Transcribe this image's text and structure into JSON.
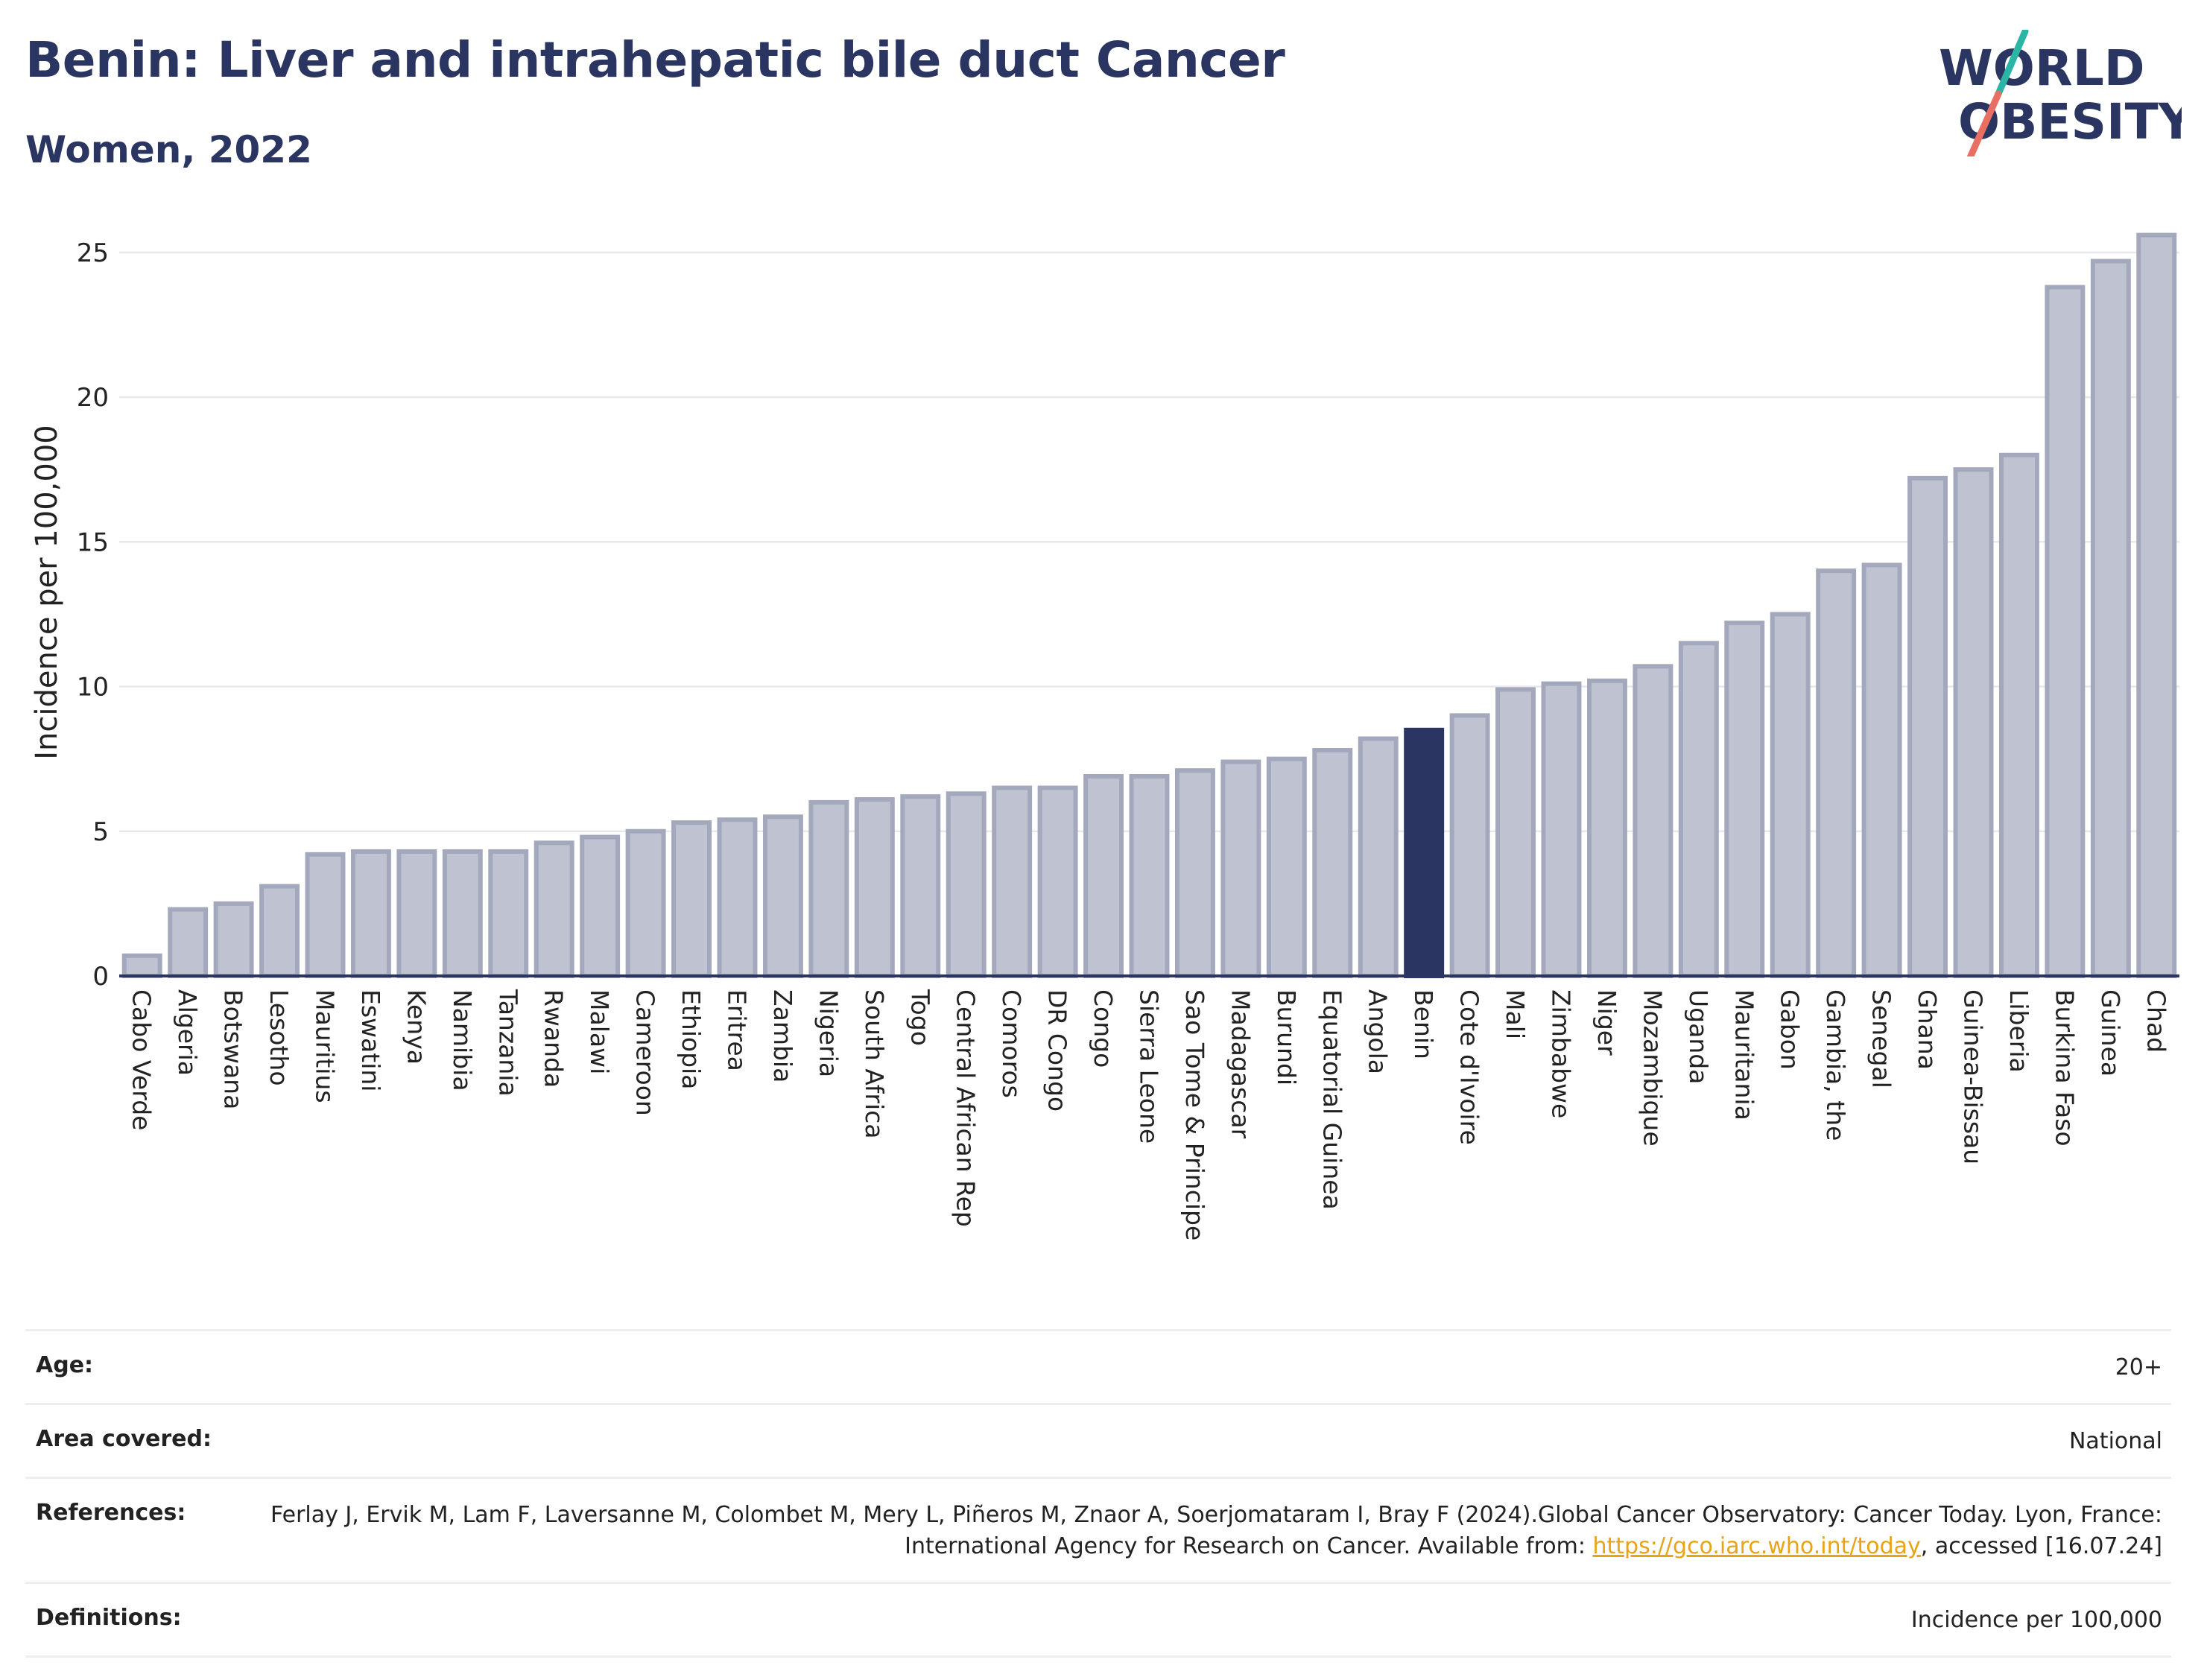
{
  "header": {
    "title": "Benin: Liver and intrahepatic bile duct Cancer",
    "subtitle": "Women, 2022"
  },
  "logo": {
    "text": "WORLD OBESITY",
    "colors": {
      "text": "#2b3561",
      "slash_top": "#2bb5a5",
      "slash_bottom": "#e86f61"
    }
  },
  "chart_data": {
    "type": "bar",
    "ylabel": "Incidence per 100,000",
    "ylim": [
      0,
      26
    ],
    "yticks": [
      0,
      5,
      10,
      15,
      20,
      25
    ],
    "grid": true,
    "highlight": "Benin",
    "colors": {
      "bar": "#bfc3d1",
      "bar_edge": "#a3a8bd",
      "highlight": "#2b3561"
    },
    "categories": [
      "Cabo Verde",
      "Algeria",
      "Botswana",
      "Lesotho",
      "Mauritius",
      "Eswatini",
      "Kenya",
      "Namibia",
      "Tanzania",
      "Rwanda",
      "Malawi",
      "Cameroon",
      "Ethiopia",
      "Eritrea",
      "Zambia",
      "Nigeria",
      "South Africa",
      "Togo",
      "Central African Rep",
      "Comoros",
      "DR Congo",
      "Congo",
      "Sierra Leone",
      "Sao Tome & Principe",
      "Madagascar",
      "Burundi",
      "Equatorial Guinea",
      "Angola",
      "Benin",
      "Cote d'Ivoire",
      "Mali",
      "Zimbabwe",
      "Niger",
      "Mozambique",
      "Uganda",
      "Mauritania",
      "Gabon",
      "Gambia, the",
      "Senegal",
      "Ghana",
      "Guinea-Bissau",
      "Liberia",
      "Burkina Faso",
      "Guinea",
      "Chad"
    ],
    "values": [
      0.7,
      2.3,
      2.5,
      3.1,
      4.2,
      4.3,
      4.3,
      4.3,
      4.3,
      4.6,
      4.8,
      5.0,
      5.3,
      5.4,
      5.5,
      6.0,
      6.1,
      6.2,
      6.3,
      6.5,
      6.5,
      6.9,
      6.9,
      7.1,
      7.4,
      7.5,
      7.8,
      8.2,
      8.5,
      9.0,
      9.9,
      10.1,
      10.2,
      10.7,
      11.5,
      12.2,
      12.5,
      14.0,
      14.2,
      17.2,
      17.5,
      18.0,
      23.8,
      24.7,
      25.6
    ]
  },
  "meta": [
    {
      "key": "Age:",
      "value": "20+"
    },
    {
      "key": "Area covered:",
      "value": "National"
    },
    {
      "key": "References:",
      "value_before": "Ferlay J, Ervik M, Lam F, Laversanne M, Colombet M, Mery L, Piñeros M, Znaor A, Soerjomataram I, Bray F (2024).Global Cancer Observatory: Cancer Today. Lyon, France: International Agency for Research on Cancer. Available from: ",
      "link": "https://gco.iarc.who.int/today",
      "value_after": ", accessed [16.07.24]"
    },
    {
      "key": "Definitions:",
      "value": "Incidence per 100,000"
    }
  ]
}
